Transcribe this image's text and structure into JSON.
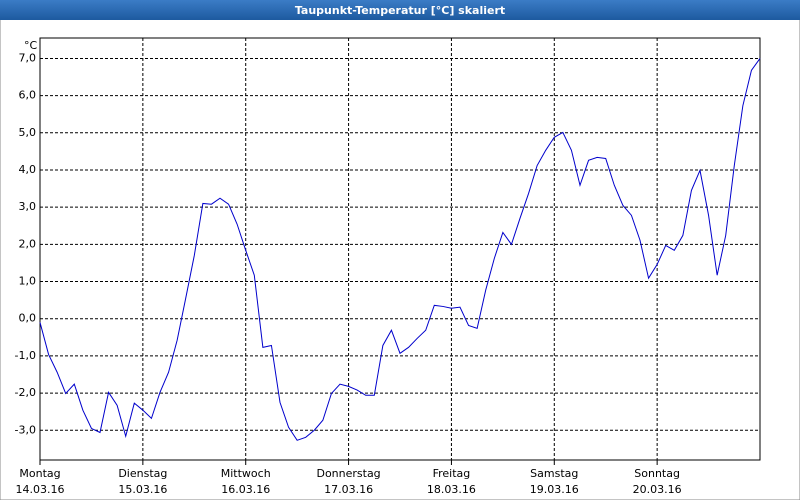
{
  "chart_data": {
    "type": "line",
    "title": "Taupunkt-Temperatur [°C] skaliert",
    "y_unit": "°C",
    "x": [
      0,
      2,
      4,
      6,
      8,
      10,
      12,
      14,
      16,
      18,
      20,
      22,
      24,
      26,
      28,
      30,
      32,
      34,
      36,
      38,
      40,
      42,
      44,
      46,
      48,
      50,
      52,
      54,
      56,
      58,
      60,
      62,
      64,
      66,
      68,
      70,
      72,
      74,
      76,
      78,
      80,
      82,
      84,
      86,
      88,
      90,
      92,
      94,
      96,
      98,
      100,
      102,
      104,
      106,
      108,
      110,
      112,
      114,
      116,
      118,
      120,
      122,
      124,
      126,
      128,
      130,
      132,
      134,
      136,
      138,
      140,
      142,
      144,
      146,
      148,
      150,
      152,
      154,
      156,
      158,
      160,
      162,
      164,
      166,
      168
    ],
    "series": [
      {
        "color": "#0000cc",
        "values": [
          -0.1,
          -0.96,
          -1.44,
          -2.01,
          -1.76,
          -2.46,
          -2.95,
          -3.06,
          -1.98,
          -2.33,
          -3.16,
          -2.27,
          -2.46,
          -2.68,
          -1.98,
          -1.44,
          -0.58,
          0.55,
          1.7,
          3.1,
          3.08,
          3.24,
          3.08,
          2.54,
          1.84,
          1.17,
          -0.77,
          -0.72,
          -2.25,
          -2.92,
          -3.27,
          -3.19,
          -3.0,
          -2.73,
          -2.01,
          -1.76,
          -1.82,
          -1.92,
          -2.06,
          -2.06,
          -0.72,
          -0.31,
          -0.93,
          -0.77,
          -0.53,
          -0.31,
          0.36,
          0.33,
          0.28,
          0.31,
          -0.18,
          -0.26,
          0.77,
          1.62,
          2.32,
          2.0,
          2.7,
          3.37,
          4.12,
          4.53,
          4.88,
          5.01,
          4.53,
          3.59,
          4.26,
          4.34,
          4.31,
          3.59,
          3.05,
          2.78,
          2.11,
          1.09,
          1.46,
          1.97,
          1.84,
          2.24,
          3.45,
          3.99,
          2.78,
          1.17,
          2.24,
          4.12,
          5.73,
          6.68,
          7.0
        ]
      }
    ],
    "xlim": [
      0,
      168
    ],
    "xticks": [
      {
        "value": 0,
        "label": "Montag",
        "date": "14.03.16"
      },
      {
        "value": 24,
        "label": "Dienstag",
        "date": "15.03.16"
      },
      {
        "value": 48,
        "label": "Mittwoch",
        "date": "16.03.16"
      },
      {
        "value": 72,
        "label": "Donnerstag",
        "date": "17.03.16"
      },
      {
        "value": 96,
        "label": "Freitag",
        "date": "18.03.16"
      },
      {
        "value": 120,
        "label": "Samstag",
        "date": "19.03.16"
      },
      {
        "value": 144,
        "label": "Sonntag",
        "date": "20.03.16"
      }
    ],
    "ylim": [
      -3.8,
      7.55
    ],
    "yticks": [
      {
        "value": -3,
        "label": "-3,0"
      },
      {
        "value": -2,
        "label": "-2,0"
      },
      {
        "value": -1,
        "label": "-1,0"
      },
      {
        "value": 0,
        "label": "0,0"
      },
      {
        "value": 1,
        "label": "1,0"
      },
      {
        "value": 2,
        "label": "2,0"
      },
      {
        "value": 3,
        "label": "3,0"
      },
      {
        "value": 4,
        "label": "4,0"
      },
      {
        "value": 5,
        "label": "5,0"
      },
      {
        "value": 6,
        "label": "6,0"
      },
      {
        "value": 7,
        "label": "7,0"
      }
    ],
    "grid": true
  }
}
